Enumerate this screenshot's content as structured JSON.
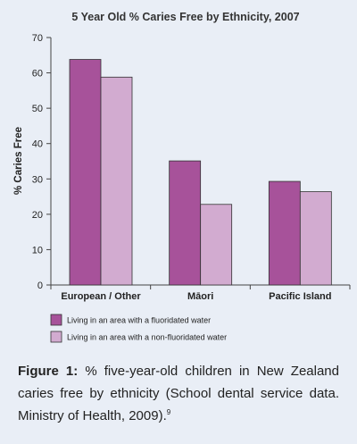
{
  "chart_data": {
    "type": "bar",
    "title": "5 Year Old % Caries Free by Ethnicity, 2007",
    "xlabel": "",
    "ylabel": "% Caries Free",
    "ylim": [
      0,
      70
    ],
    "yticks": [
      0,
      10,
      20,
      30,
      40,
      50,
      60,
      70
    ],
    "grid": false,
    "legend_position": "bottom-left",
    "categories": [
      "European / Other",
      "Māori",
      "Pacific Island"
    ],
    "series": [
      {
        "name": "Living in an area with a fluoridated water",
        "color": "#a7529a",
        "values": [
          63.8,
          35.1,
          29.3
        ]
      },
      {
        "name": "Living in an area with a non-fluoridated water",
        "color": "#d2abd0",
        "values": [
          58.8,
          22.8,
          26.4
        ]
      }
    ]
  },
  "caption": {
    "label": "Figure 1:",
    "text": " % five-year-old children in New Zealand caries free by ethnicity (School dental service data. Ministry of Health, 2009).",
    "ref": "9"
  }
}
